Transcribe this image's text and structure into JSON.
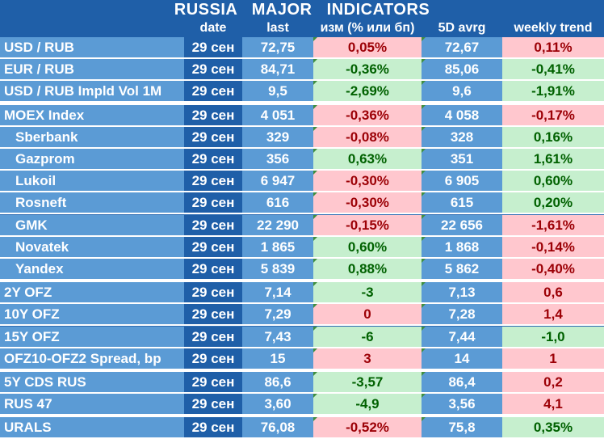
{
  "title": "RUSSIA   MAJOR   INDICATORS",
  "headers": [
    "",
    "date",
    "last",
    "изм (% или бп)",
    "5D avrg",
    "weekly trend"
  ],
  "groups": [
    {
      "rows": [
        {
          "name": "USD / RUB",
          "date": "29 сен",
          "last": "72,75",
          "chg": "0,05%",
          "chg_sign": "neg",
          "avg": "72,67",
          "trend": "0,11%",
          "trend_sign": "neg"
        },
        {
          "name": "EUR / RUB",
          "date": "29 сен",
          "last": "84,71",
          "chg": "-0,36%",
          "chg_sign": "pos",
          "avg": "85,06",
          "trend": "-0,41%",
          "trend_sign": "pos"
        },
        {
          "name": "USD / RUB Impld Vol 1M",
          "date": "29 сен",
          "last": "9,5",
          "chg": "-2,69%",
          "chg_sign": "pos",
          "avg": "9,6",
          "trend": "-1,91%",
          "trend_sign": "pos"
        }
      ]
    },
    {
      "rows": [
        {
          "name": "MOEX Index",
          "date": "29 сен",
          "last": "4 051",
          "chg": "-0,36%",
          "chg_sign": "neg",
          "avg": "4 058",
          "trend": "-0,17%",
          "trend_sign": "neg"
        },
        {
          "name": "Sberbank",
          "sub": true,
          "date": "29 сен",
          "last": "329",
          "chg": "-0,08%",
          "chg_sign": "neg",
          "avg": "328",
          "trend": "0,16%",
          "trend_sign": "pos"
        },
        {
          "name": "Gazprom",
          "sub": true,
          "date": "29 сен",
          "last": "356",
          "chg": "0,63%",
          "chg_sign": "pos",
          "avg": "351",
          "trend": "1,61%",
          "trend_sign": "pos"
        },
        {
          "name": "Lukoil",
          "sub": true,
          "date": "29 сен",
          "last": "6 947",
          "chg": "-0,30%",
          "chg_sign": "neg",
          "avg": "6 905",
          "trend": "0,60%",
          "trend_sign": "pos"
        },
        {
          "name": "Rosneft",
          "sub": true,
          "date": "29 сен",
          "last": "616",
          "chg": "-0,30%",
          "chg_sign": "neg",
          "avg": "615",
          "trend": "0,20%",
          "trend_sign": "pos"
        },
        {
          "name": "GMK",
          "sub": true,
          "date": "29 сен",
          "last": "22 290",
          "chg": "-0,15%",
          "chg_sign": "neg",
          "avg": "22 656",
          "trend": "-1,61%",
          "trend_sign": "neg"
        },
        {
          "name": "Novatek",
          "sub": true,
          "date": "29 сен",
          "last": "1 865",
          "chg": "0,60%",
          "chg_sign": "pos",
          "avg": "1 868",
          "trend": "-0,14%",
          "trend_sign": "neg"
        },
        {
          "name": "Yandex",
          "sub": true,
          "date": "29 сен",
          "last": "5 839",
          "chg": "0,88%",
          "chg_sign": "pos",
          "avg": "5 862",
          "trend": "-0,40%",
          "trend_sign": "neg"
        }
      ]
    },
    {
      "rows": [
        {
          "name": "2Y OFZ",
          "date": "29 сен",
          "last": "7,14",
          "chg": "-3",
          "chg_sign": "pos",
          "avg": "7,13",
          "trend": "0,6",
          "trend_sign": "neg"
        },
        {
          "name": "10Y OFZ",
          "date": "29 сен",
          "last": "7,29",
          "chg": "0",
          "chg_sign": "neg",
          "avg": "7,28",
          "trend": "1,4",
          "trend_sign": "neg"
        },
        {
          "name": "15Y OFZ",
          "date": "29 сен",
          "last": "7,43",
          "chg": "-6",
          "chg_sign": "pos",
          "avg": "7,44",
          "trend": "-1,0",
          "trend_sign": "pos"
        },
        {
          "name": "OFZ10-OFZ2 Spread, bp",
          "date": "29 сен",
          "last": "15",
          "chg": "3",
          "chg_sign": "neg",
          "avg": "14",
          "trend": "1",
          "trend_sign": "neg"
        }
      ]
    },
    {
      "rows": [
        {
          "name": "5Y CDS RUS",
          "date": "29 сен",
          "last": "86,6",
          "chg": "-3,57",
          "chg_sign": "pos",
          "avg": "86,4",
          "trend": "0,2",
          "trend_sign": "neg"
        },
        {
          "name": "RUS 47",
          "date": "29 сен",
          "last": "3,60",
          "chg": "-4,9",
          "chg_sign": "pos",
          "avg": "3,56",
          "trend": "4,1",
          "trend_sign": "neg"
        }
      ]
    },
    {
      "rows": [
        {
          "name": "URALS",
          "date": "29 сен",
          "last": "76,08",
          "chg": "-0,52%",
          "chg_sign": "neg",
          "avg": "75,8",
          "trend": "0,35%",
          "trend_sign": "pos"
        }
      ]
    }
  ],
  "colors": {
    "title_bg": "#1f5fa8",
    "name_col": "#5b9bd5",
    "date_col": "#1f5fa8",
    "last_col": "#5b9bd5",
    "avg_col": "#5b9bd5",
    "positive_bg": "#c6efce",
    "positive_text": "#006100",
    "negative_bg": "#ffc7ce",
    "negative_text": "#9c0006"
  }
}
